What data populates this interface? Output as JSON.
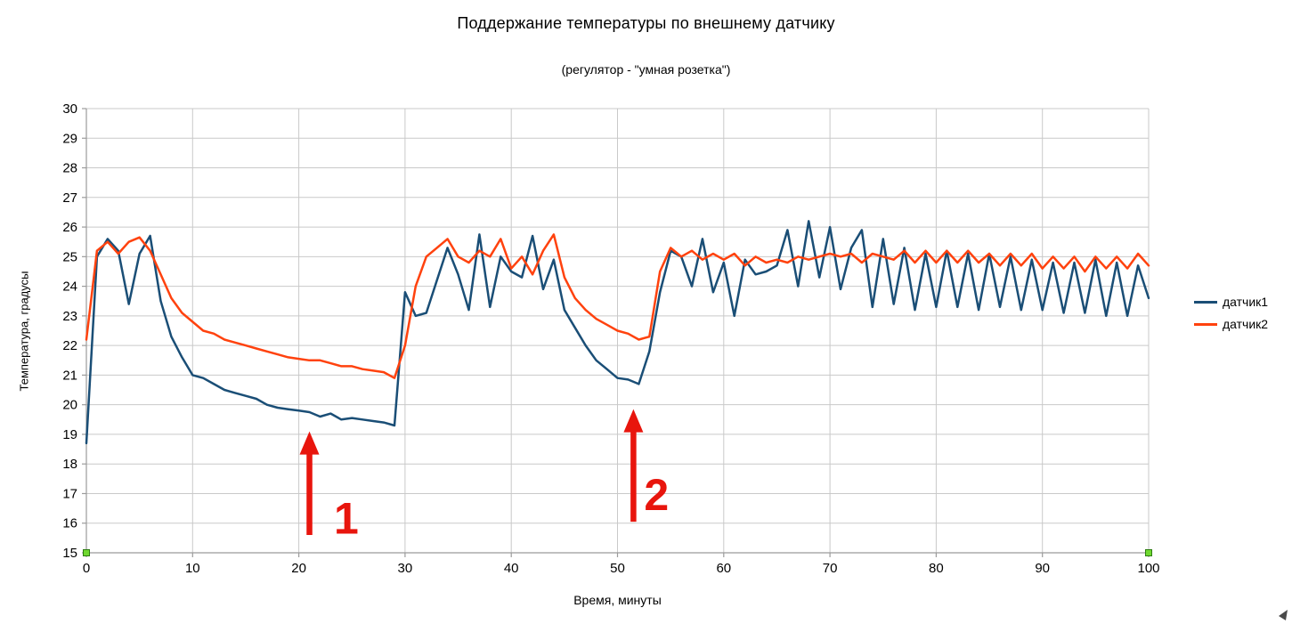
{
  "chart_data": {
    "type": "line",
    "title": "Поддержание температуры по внешнему датчику",
    "subtitle": "(регулятор - \"умная розетка\")",
    "xlabel": "Время, минуты",
    "ylabel": "Температура, градусы",
    "xlim": [
      0,
      100
    ],
    "ylim": [
      15,
      30
    ],
    "grid": true,
    "grid_color": "#c9c9c9",
    "axis_color": "#9b9b9b",
    "x_ticks": [
      0,
      10,
      20,
      30,
      40,
      50,
      60,
      70,
      80,
      90,
      100
    ],
    "y_ticks": [
      15,
      16,
      17,
      18,
      19,
      20,
      21,
      22,
      23,
      24,
      25,
      26,
      27,
      28,
      29,
      30
    ],
    "x": {
      "start": 0,
      "step": 1,
      "count": 101
    },
    "series": [
      {
        "name": "датчик1",
        "color": "#1a4e76",
        "values": [
          18.7,
          25.0,
          25.6,
          25.2,
          23.4,
          25.1,
          25.7,
          23.5,
          22.3,
          21.6,
          21.0,
          20.9,
          20.7,
          20.5,
          20.4,
          20.3,
          20.2,
          20.0,
          19.9,
          19.85,
          19.8,
          19.75,
          19.6,
          19.7,
          19.5,
          19.55,
          19.5,
          19.45,
          19.4,
          19.3,
          23.8,
          23.0,
          23.1,
          24.2,
          25.3,
          24.4,
          23.2,
          25.75,
          23.3,
          25.0,
          24.5,
          24.3,
          25.7,
          23.9,
          24.9,
          23.2,
          22.6,
          22.0,
          21.5,
          21.2,
          20.9,
          20.85,
          20.7,
          21.8,
          23.8,
          25.2,
          25.0,
          24.0,
          25.6,
          23.8,
          24.8,
          23.0,
          24.9,
          24.4,
          24.5,
          24.7,
          25.9,
          24.0,
          26.2,
          24.3,
          26.0,
          23.9,
          25.3,
          25.9,
          23.3,
          25.6,
          23.4,
          25.3,
          23.2,
          25.1,
          23.3,
          25.2,
          23.3,
          25.1,
          23.2,
          25.1,
          23.3,
          25.0,
          23.2,
          24.9,
          23.2,
          24.8,
          23.1,
          24.8,
          23.1,
          24.9,
          23.0,
          24.8,
          23.0,
          24.7,
          23.6
        ]
      },
      {
        "name": "датчик2",
        "color": "#ff420e",
        "values": [
          22.2,
          25.2,
          25.5,
          25.1,
          25.5,
          25.65,
          25.2,
          24.4,
          23.6,
          23.1,
          22.8,
          22.5,
          22.4,
          22.2,
          22.1,
          22.0,
          21.9,
          21.8,
          21.7,
          21.6,
          21.55,
          21.5,
          21.5,
          21.4,
          21.3,
          21.3,
          21.2,
          21.15,
          21.1,
          20.9,
          22.0,
          24.0,
          25.0,
          25.3,
          25.6,
          25.0,
          24.8,
          25.2,
          25.0,
          25.6,
          24.6,
          25.0,
          24.4,
          25.2,
          25.75,
          24.3,
          23.6,
          23.2,
          22.9,
          22.7,
          22.5,
          22.4,
          22.2,
          22.3,
          24.5,
          25.3,
          25.0,
          25.2,
          24.9,
          25.1,
          24.9,
          25.1,
          24.7,
          25.0,
          24.8,
          24.9,
          24.8,
          25.0,
          24.9,
          25.0,
          25.1,
          25.0,
          25.1,
          24.8,
          25.1,
          25.0,
          24.9,
          25.2,
          24.8,
          25.2,
          24.8,
          25.2,
          24.8,
          25.2,
          24.8,
          25.1,
          24.7,
          25.1,
          24.7,
          25.1,
          24.6,
          25.0,
          24.6,
          25.0,
          24.5,
          25.0,
          24.6,
          25.0,
          24.6,
          25.1,
          24.7
        ]
      }
    ],
    "legend_position": "right",
    "annotation_color": "#e8150d",
    "annotations": [
      {
        "label": "1",
        "arrow_x": 21,
        "arrow_y_from": 15.6,
        "arrow_y_to": 19.1,
        "label_x": 23.3,
        "label_y": 15.65
      },
      {
        "label": "2",
        "arrow_x": 51.5,
        "arrow_y_from": 16.05,
        "arrow_y_to": 19.85,
        "label_x": 52.5,
        "label_y": 16.45
      }
    ],
    "handle_color": "#6fd82f",
    "handles": [
      {
        "x": 0,
        "y": 15
      },
      {
        "x": 100,
        "y": 15
      }
    ]
  }
}
